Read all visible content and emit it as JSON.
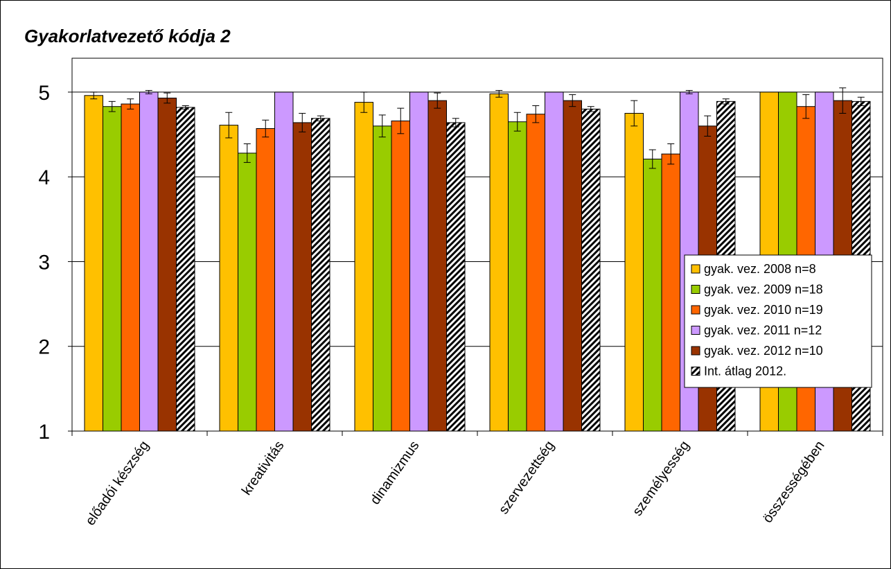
{
  "chart_data": {
    "type": "bar",
    "title": "Gyakorlatvezető kódja 2",
    "xlabel": "",
    "ylabel": "",
    "ylim": [
      1,
      5.4
    ],
    "yticks": [
      1,
      2,
      3,
      4,
      5
    ],
    "grid": true,
    "legend_position": "right",
    "categories": [
      "előadói készség",
      "kreativitás",
      "dinamizmus",
      "szervezettség",
      "személyesség",
      "összességében"
    ],
    "series": [
      {
        "name": "gyak. vez. 2008 n=8",
        "color": "#FFC000",
        "pattern": "solid",
        "values": [
          4.96,
          4.61,
          4.88,
          4.98,
          4.75,
          5.0
        ],
        "errors": [
          0.04,
          0.15,
          0.12,
          0.04,
          0.15,
          0.0
        ]
      },
      {
        "name": "gyak. vez. 2009 n=18",
        "color": "#99CC00",
        "pattern": "solid",
        "values": [
          4.83,
          4.28,
          4.6,
          4.65,
          4.21,
          5.0
        ],
        "errors": [
          0.06,
          0.11,
          0.13,
          0.11,
          0.11,
          0.0
        ]
      },
      {
        "name": "gyak. vez. 2010 n=19",
        "color": "#FF6600",
        "pattern": "solid",
        "values": [
          4.86,
          4.57,
          4.66,
          4.74,
          4.27,
          4.83
        ],
        "errors": [
          0.06,
          0.1,
          0.15,
          0.1,
          0.12,
          0.14
        ]
      },
      {
        "name": "gyak. vez. 2011 n=12",
        "color": "#CC99FF",
        "pattern": "solid",
        "values": [
          5.0,
          5.0,
          5.0,
          5.0,
          5.0,
          5.0
        ],
        "errors": [
          0.02,
          0.0,
          0.0,
          0.0,
          0.02,
          0.0
        ]
      },
      {
        "name": "gyak. vez. 2012 n=10",
        "color": "#993300",
        "pattern": "solid",
        "values": [
          4.93,
          4.64,
          4.9,
          4.9,
          4.6,
          4.9
        ],
        "errors": [
          0.06,
          0.11,
          0.09,
          0.07,
          0.12,
          0.15
        ]
      },
      {
        "name": "Int. átlag 2012.",
        "color": "#000000",
        "pattern": "hatch",
        "values": [
          4.82,
          4.69,
          4.64,
          4.8,
          4.89,
          4.89
        ],
        "errors": [
          0.02,
          0.03,
          0.05,
          0.03,
          0.03,
          0.05
        ]
      }
    ]
  }
}
